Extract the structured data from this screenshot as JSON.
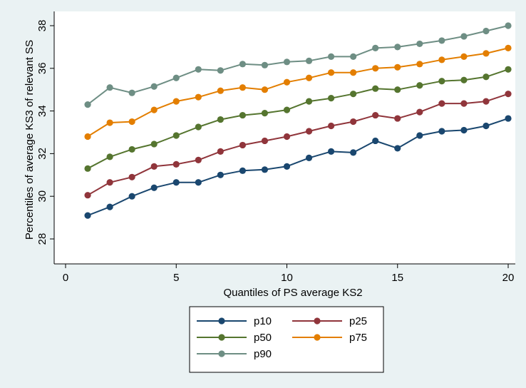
{
  "chart_data": {
    "type": "line",
    "xlabel": "Quantiles of PS average KS2",
    "ylabel": "Percentiles of average KS3 of relevant SS",
    "xlim": [
      0,
      20
    ],
    "ylim": [
      27.2,
      38.4
    ],
    "xticks": [
      0,
      5,
      10,
      15,
      20
    ],
    "yticks": [
      28,
      30,
      32,
      34,
      36,
      38
    ],
    "grid": false,
    "legend": "bottom",
    "x": [
      1,
      2,
      3,
      4,
      5,
      6,
      7,
      8,
      9,
      10,
      11,
      12,
      13,
      14,
      15,
      16,
      17,
      18,
      19,
      20
    ],
    "series": [
      {
        "name": "p10",
        "color": "#1a476f",
        "values": [
          29.1,
          29.5,
          30.0,
          30.4,
          30.65,
          30.65,
          31.0,
          31.2,
          31.25,
          31.4,
          31.8,
          32.1,
          32.05,
          32.6,
          32.25,
          32.85,
          33.05,
          33.1,
          33.3,
          33.65
        ]
      },
      {
        "name": "p25",
        "color": "#90353b",
        "values": [
          30.05,
          30.65,
          30.9,
          31.4,
          31.5,
          31.7,
          32.1,
          32.4,
          32.6,
          32.8,
          33.05,
          33.3,
          33.5,
          33.8,
          33.65,
          33.95,
          34.35,
          34.35,
          34.45,
          34.8
        ]
      },
      {
        "name": "p50",
        "color": "#55752f",
        "values": [
          31.3,
          31.85,
          32.2,
          32.45,
          32.85,
          33.25,
          33.6,
          33.8,
          33.9,
          34.05,
          34.45,
          34.6,
          34.8,
          35.05,
          35.0,
          35.2,
          35.4,
          35.45,
          35.6,
          35.95
        ]
      },
      {
        "name": "p75",
        "color": "#e37e00",
        "values": [
          32.8,
          33.45,
          33.5,
          34.05,
          34.45,
          34.65,
          34.95,
          35.1,
          35.0,
          35.35,
          35.55,
          35.8,
          35.8,
          36.0,
          36.05,
          36.2,
          36.4,
          36.55,
          36.7,
          36.95
        ]
      },
      {
        "name": "p90",
        "color": "#6e8e84",
        "values": [
          34.3,
          35.1,
          34.85,
          35.15,
          35.55,
          35.95,
          35.9,
          36.2,
          36.15,
          36.3,
          36.35,
          36.55,
          36.55,
          36.95,
          37.0,
          37.15,
          37.3,
          37.5,
          37.75,
          38.0
        ]
      }
    ]
  }
}
